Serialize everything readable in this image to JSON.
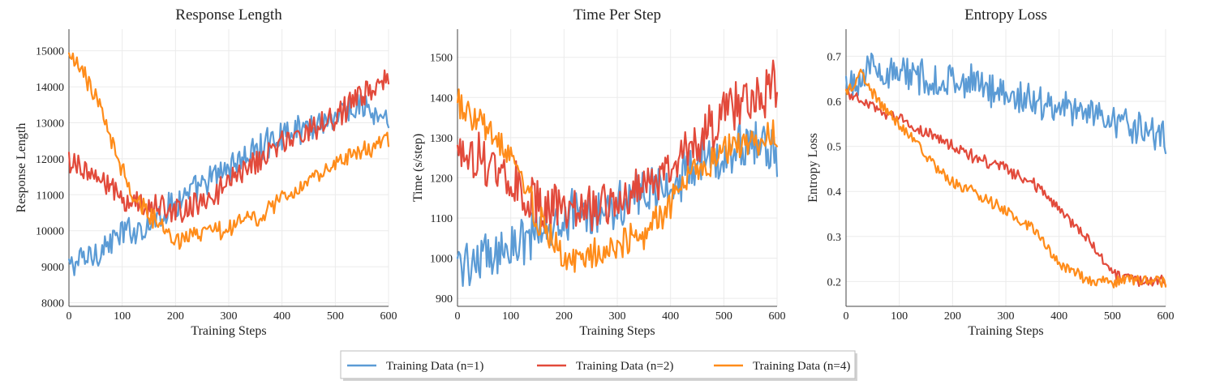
{
  "chart_data": [
    {
      "type": "line",
      "title": "Response Length",
      "xlabel": "Training Steps",
      "ylabel": "Response Length",
      "xlim": [
        0,
        600
      ],
      "ylim": [
        7900,
        15600
      ],
      "xticks": [
        0,
        100,
        200,
        300,
        400,
        500,
        600
      ],
      "yticks": [
        8000,
        9000,
        10000,
        11000,
        12000,
        13000,
        14000,
        15000
      ],
      "grid": true,
      "series": [
        {
          "name": "Training Data (n=1)",
          "color": "#5b9bd5",
          "x": [
            0,
            50,
            100,
            150,
            200,
            250,
            300,
            350,
            400,
            450,
            500,
            550,
            600
          ],
          "y": [
            9000,
            9400,
            9900,
            10200,
            10800,
            11200,
            11800,
            12200,
            12700,
            12900,
            13200,
            13500,
            12900
          ],
          "noise": 380
        },
        {
          "name": "Training Data (n=2)",
          "color": "#e24a3b",
          "x": [
            0,
            50,
            100,
            150,
            200,
            250,
            300,
            350,
            400,
            450,
            500,
            550,
            600
          ],
          "y": [
            12000,
            11500,
            10900,
            10700,
            10500,
            10800,
            11300,
            11900,
            12400,
            12800,
            13200,
            13700,
            14200
          ],
          "noise": 320
        },
        {
          "name": "Training Data (n=4)",
          "color": "#ff8c1a",
          "x": [
            0,
            20,
            50,
            80,
            120,
            160,
            200,
            250,
            300,
            350,
            400,
            450,
            500,
            550,
            600
          ],
          "y": [
            14800,
            14500,
            13800,
            12500,
            11000,
            10300,
            9700,
            9900,
            10100,
            10300,
            10900,
            11400,
            11900,
            12200,
            12500
          ],
          "noise": 240
        }
      ]
    },
    {
      "type": "line",
      "title": "Time Per Step",
      "xlabel": "Training Steps",
      "ylabel": "Time (s/step)",
      "xlim": [
        0,
        600
      ],
      "ylim": [
        880,
        1570
      ],
      "xticks": [
        0,
        100,
        200,
        300,
        400,
        500,
        600
      ],
      "yticks": [
        900,
        1000,
        1100,
        1200,
        1300,
        1400,
        1500
      ],
      "grid": true,
      "series": [
        {
          "name": "Training Data (n=1)",
          "color": "#5b9bd5",
          "x": [
            0,
            50,
            100,
            150,
            200,
            250,
            300,
            350,
            400,
            450,
            500,
            550,
            600
          ],
          "y": [
            990,
            1000,
            1030,
            1060,
            1100,
            1120,
            1140,
            1160,
            1180,
            1230,
            1260,
            1290,
            1250
          ],
          "noise": 55
        },
        {
          "name": "Training Data (n=2)",
          "color": "#e24a3b",
          "x": [
            0,
            50,
            100,
            150,
            200,
            250,
            300,
            350,
            400,
            450,
            500,
            550,
            600
          ],
          "y": [
            1270,
            1250,
            1180,
            1140,
            1110,
            1120,
            1150,
            1190,
            1220,
            1290,
            1360,
            1390,
            1440
          ],
          "noise": 55
        },
        {
          "name": "Training Data (n=4)",
          "color": "#ff8c1a",
          "x": [
            0,
            50,
            100,
            150,
            200,
            250,
            300,
            350,
            400,
            450,
            500,
            550,
            600
          ],
          "y": [
            1380,
            1330,
            1250,
            1100,
            1000,
            1010,
            1030,
            1060,
            1130,
            1220,
            1260,
            1290,
            1310
          ],
          "noise": 40
        }
      ]
    },
    {
      "type": "line",
      "title": "Entropy Loss",
      "xlabel": "Training Steps",
      "ylabel": "Entropy Loss",
      "xlim": [
        0,
        600
      ],
      "ylim": [
        0.145,
        0.76
      ],
      "xticks": [
        0,
        100,
        200,
        300,
        400,
        500,
        600
      ],
      "yticks": [
        0.2,
        0.3,
        0.4,
        0.5,
        0.6,
        0.7
      ],
      "grid": true,
      "series": [
        {
          "name": "Training Data (n=1)",
          "color": "#5b9bd5",
          "x": [
            0,
            50,
            100,
            150,
            200,
            250,
            300,
            350,
            400,
            450,
            500,
            550,
            600
          ],
          "y": [
            0.64,
            0.67,
            0.66,
            0.65,
            0.645,
            0.635,
            0.62,
            0.6,
            0.59,
            0.58,
            0.56,
            0.54,
            0.52
          ],
          "noise": 0.035
        },
        {
          "name": "Training Data (n=2)",
          "color": "#e24a3b",
          "x": [
            0,
            30,
            60,
            100,
            150,
            200,
            250,
            300,
            350,
            400,
            450,
            500,
            550,
            600
          ],
          "y": [
            0.62,
            0.6,
            0.58,
            0.56,
            0.53,
            0.5,
            0.47,
            0.45,
            0.42,
            0.36,
            0.3,
            0.22,
            0.2,
            0.2
          ],
          "noise": 0.012
        },
        {
          "name": "Training Data (n=4)",
          "color": "#ff8c1a",
          "x": [
            0,
            30,
            60,
            100,
            150,
            200,
            250,
            300,
            350,
            400,
            450,
            500,
            550,
            600
          ],
          "y": [
            0.62,
            0.66,
            0.6,
            0.55,
            0.48,
            0.42,
            0.39,
            0.36,
            0.32,
            0.24,
            0.205,
            0.2,
            0.205,
            0.2
          ],
          "noise": 0.012
        }
      ]
    }
  ],
  "legend": {
    "placement": "bottom-center",
    "entries": [
      {
        "label": "Training Data (n=1)",
        "color": "#5b9bd5"
      },
      {
        "label": "Training Data (n=2)",
        "color": "#e24a3b"
      },
      {
        "label": "Training Data (n=4)",
        "color": "#ff8c1a"
      }
    ]
  }
}
